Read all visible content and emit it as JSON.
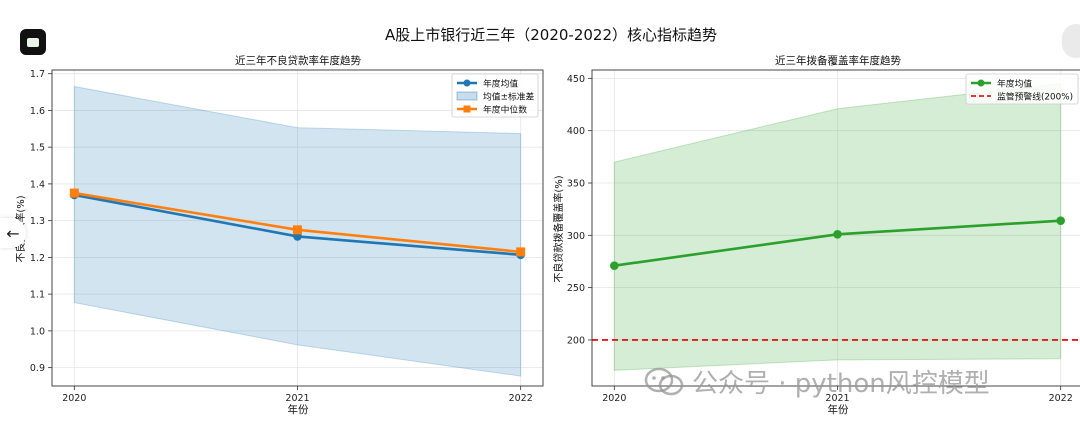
{
  "suptitle": "A股上市银行近三年（2020-2022）核心指标趋势",
  "watermark": "公众号 · python风控模型",
  "icons": {
    "app": "app-logo-icon",
    "back": "back-arrow-icon",
    "watermark": "wechat-icon"
  },
  "chart_data": [
    {
      "type": "line",
      "title": "近三年不良贷款率年度趋势",
      "xlabel": "年份",
      "ylabel": "不良贷款率(%)",
      "x": [
        "2020",
        "2021",
        "2022"
      ],
      "xlim": [
        2019.9,
        2022.1
      ],
      "ylim": [
        0.85,
        1.71
      ],
      "yticks": [
        "0.9",
        "1.0",
        "1.1",
        "1.2",
        "1.3",
        "1.4",
        "1.5",
        "1.6",
        "1.7"
      ],
      "grid": true,
      "legend_position": "top-right",
      "series": [
        {
          "name": "年度均值",
          "values": [
            1.37,
            1.257,
            1.207
          ],
          "color": "#1f77b4",
          "marker": "circle"
        },
        {
          "name": "均值±标准差",
          "type": "band",
          "lower": [
            1.077,
            0.962,
            0.877
          ],
          "upper": [
            1.665,
            1.553,
            1.537
          ],
          "color": "#1f77b4"
        },
        {
          "name": "年度中位数",
          "values": [
            1.375,
            1.275,
            1.215
          ],
          "color": "#ff7f0e",
          "marker": "square"
        }
      ]
    },
    {
      "type": "line",
      "title": "近三年拨备覆盖率年度趋势",
      "xlabel": "年份",
      "ylabel": "不良贷款拨备覆盖率(%)",
      "x": [
        "2020",
        "2021",
        "2022"
      ],
      "xlim": [
        2019.9,
        2022.1
      ],
      "ylim": [
        156,
        458
      ],
      "yticks": [
        "200",
        "250",
        "300",
        "350",
        "400",
        "450"
      ],
      "grid": true,
      "legend_position": "top-right",
      "series": [
        {
          "name": "年度均值",
          "values": [
            271,
            301,
            314
          ],
          "color": "#2ca02c",
          "marker": "circle"
        },
        {
          "name": "",
          "type": "band",
          "lower": [
            171,
            181,
            182
          ],
          "upper": [
            370,
            421,
            445
          ],
          "color": "#2ca02c"
        },
        {
          "name": "监管预警线(200%)",
          "type": "hline",
          "value": 200,
          "color": "#e41a1c"
        }
      ]
    }
  ]
}
